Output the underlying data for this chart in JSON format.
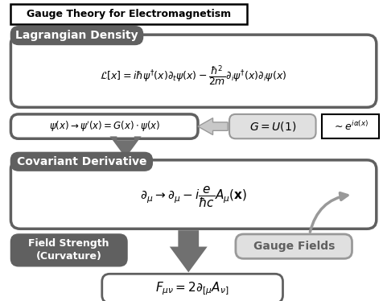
{
  "title": "Gauge Theory for Electromagnetism",
  "lagrangian_label": "Lagrangian Density",
  "gauge_transform": "$\\psi(x)\\rightarrow\\psi'(x)=G(x)\\cdot\\psi(x)$",
  "gauge_group": "$G=U(1)$",
  "gauge_exp": "$\\sim e^{i\\alpha(x)}$",
  "covariant_label": "Covariant Derivative",
  "field_strength_label": "Field Strength\n(Curvature)",
  "gauge_fields_label": "Gauge Fields",
  "dark_gray": "#606060",
  "medium_gray": "#999999",
  "light_gray": "#c8c8c8",
  "lighter_gray": "#e0e0e0",
  "arrow_gray": "#707070",
  "fig_w": 4.77,
  "fig_h": 3.74,
  "dpi": 100
}
